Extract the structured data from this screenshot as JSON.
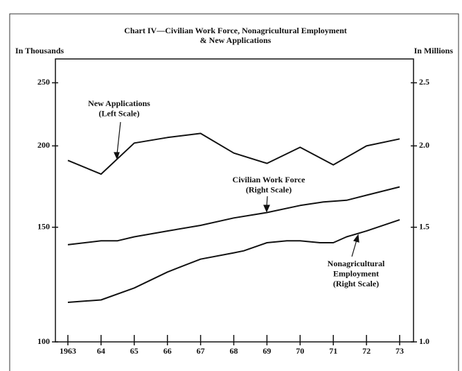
{
  "chart_data": {
    "type": "line",
    "title_lines": [
      "Chart IV—Civilian Work Force, Nonagricultural Employment",
      "& New Applications"
    ],
    "y_label": "In Thousands",
    "y2_label": "In Millions",
    "log_scale": true,
    "xlim": [
      1963,
      1973
    ],
    "xticks": [
      1963,
      {
        "value": 1964,
        "label": "64"
      },
      {
        "value": 1965,
        "label": "65"
      },
      {
        "value": 1966,
        "label": "66"
      },
      {
        "value": 1967,
        "label": "67"
      },
      {
        "value": 1968,
        "label": "68"
      },
      {
        "value": 1969,
        "label": "69"
      },
      {
        "value": 1970,
        "label": "70"
      },
      {
        "value": 1971,
        "label": "71"
      },
      {
        "value": 1972,
        "label": "72"
      },
      {
        "value": 1973,
        "label": "73"
      }
    ],
    "ylim": [
      100,
      272
    ],
    "yticks": [
      100,
      150,
      200,
      250
    ],
    "y2lim": [
      1,
      2.72
    ],
    "y2ticks": [
      {
        "value": 1,
        "label": "1.0"
      },
      1.5,
      {
        "value": 2,
        "label": "2.0"
      },
      2.5
    ],
    "series": [
      {
        "name": "New Applications",
        "color": "#111111",
        "x": [
          1963,
          1964,
          1965,
          1966,
          1967,
          1968,
          1969,
          1970,
          1971,
          1972,
          1973
        ],
        "values": [
          190,
          181,
          202,
          206,
          209,
          195,
          188,
          199,
          187,
          200,
          205
        ]
      },
      {
        "name": "Civilian Work Force",
        "color": "#111111",
        "axis": "y2",
        "x": [
          1963,
          1964,
          1964.5,
          1965,
          1966,
          1967,
          1968,
          1969,
          1970,
          1970.7,
          1971.4,
          1972,
          1973
        ],
        "values": [
          1.41,
          1.43,
          1.43,
          1.45,
          1.48,
          1.51,
          1.55,
          1.58,
          1.62,
          1.64,
          1.65,
          1.68,
          1.73
        ]
      },
      {
        "name": "Nonagricultural Employment",
        "color": "#111111",
        "axis": "y2",
        "x": [
          1963,
          1964,
          1965,
          1966,
          1966.5,
          1967,
          1968,
          1968.3,
          1969,
          1969.6,
          1970,
          1970.6,
          1971,
          1971.4,
          1972,
          1973
        ],
        "values": [
          1.15,
          1.16,
          1.21,
          1.28,
          1.31,
          1.34,
          1.37,
          1.38,
          1.42,
          1.43,
          1.43,
          1.42,
          1.42,
          1.45,
          1.48,
          1.54
        ]
      }
    ],
    "annotations": [
      {
        "lines": [
          "New Applications",
          "(Left Scale)"
        ]
      },
      {
        "lines": [
          "Civilian Work Force",
          "(Right Scale)"
        ]
      },
      {
        "lines": [
          "Nonagricultural",
          "Employment",
          "(Right Scale)"
        ]
      }
    ]
  }
}
